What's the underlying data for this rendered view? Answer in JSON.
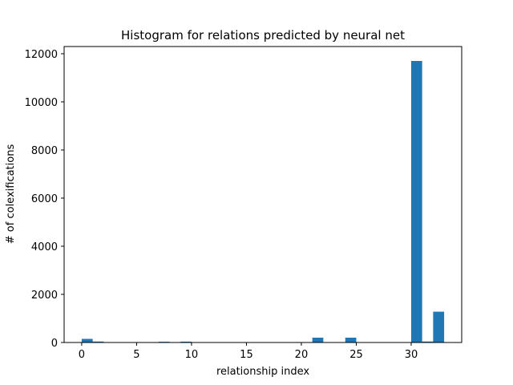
{
  "chart_data": {
    "type": "bar",
    "title": "Histogram for relations predicted by neural net",
    "xlabel": "relationship index",
    "ylabel": "# of colexifications",
    "xlim": [
      -1.6,
      34.6
    ],
    "ylim": [
      0,
      12300
    ],
    "x_ticks": [
      0,
      5,
      10,
      15,
      20,
      25,
      30
    ],
    "y_ticks": [
      0,
      2000,
      4000,
      6000,
      8000,
      10000,
      12000
    ],
    "bin_width": 1.0,
    "bars": [
      {
        "x": 0.5,
        "value": 150
      },
      {
        "x": 1.5,
        "value": 40
      },
      {
        "x": 7.5,
        "value": 30
      },
      {
        "x": 9.5,
        "value": 35
      },
      {
        "x": 21.5,
        "value": 200
      },
      {
        "x": 24.5,
        "value": 200
      },
      {
        "x": 30.5,
        "value": 11700
      },
      {
        "x": 31.5,
        "value": 40
      },
      {
        "x": 32.5,
        "value": 1280
      }
    ],
    "bar_color": "#1f77b4",
    "grid": false,
    "legend": "none"
  }
}
